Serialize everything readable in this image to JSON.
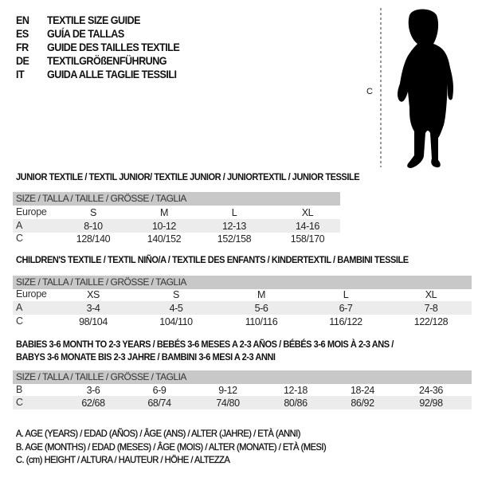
{
  "header": [
    {
      "code": "EN",
      "title": "TEXTILE SIZE GUIDE"
    },
    {
      "code": "ES",
      "title": "GUÍA DE TALLAS"
    },
    {
      "code": "FR",
      "title": "GUIDE DES TAILLES TEXTILE"
    },
    {
      "code": "DE",
      "title": "TEXTILGRÖßENFÜHRUNG"
    },
    {
      "code": "IT",
      "title": "GUIDA ALLE TAGLIE TESSILI"
    }
  ],
  "figure": {
    "label": "C",
    "icon": "child-silhouette"
  },
  "size_header": "SIZE / TALLA / TAILLE / GRÖSSE / TAGLIA",
  "junior": {
    "title": "JUNIOR TEXTILE / TEXTIL JUNIOR/ TEXTILE JUNIOR / JUNIORTEXTIL / JUNIOR TESSILE",
    "rows": [
      {
        "label": "Europe",
        "values": [
          "S",
          "M",
          "L",
          "XL"
        ]
      },
      {
        "label": "A",
        "values": [
          "8-10",
          "10-12",
          "12-13",
          "14-16"
        ]
      },
      {
        "label": "C",
        "values": [
          "128/140",
          "140/152",
          "152/158",
          "158/170"
        ]
      }
    ]
  },
  "children": {
    "title": "CHILDREN'S TEXTILE / TEXTIL NIÑO/A / TEXTILE DES ENFANTS / KINDERTEXTIL / BAMBINI TESSILE",
    "rows": [
      {
        "label": "Europe",
        "values": [
          "XS",
          "S",
          "M",
          "L",
          "XL"
        ]
      },
      {
        "label": "A",
        "values": [
          "3-4",
          "4-5",
          "5-6",
          "6-7",
          "7-8"
        ]
      },
      {
        "label": "C",
        "values": [
          "98/104",
          "104/110",
          "110/116",
          "116/122",
          "122/128"
        ]
      }
    ]
  },
  "babies": {
    "title_line1": "BABIES 3-6 MONTH TO 2-3 YEARS / BEBÉS 3-6 MESES A 2-3 AÑOS / BÉBÉS 3-6 MOIS À 2-3 ANS /",
    "title_line2": "BABYS 3-6 MONATE BIS 2-3 JAHRE / BAMBINI 3-6 MESI A 2-3 ANNI",
    "rows": [
      {
        "label": "B",
        "values": [
          "3-6",
          "6-9",
          "9-12",
          "12-18",
          "18-24",
          "24-36"
        ]
      },
      {
        "label": "C",
        "values": [
          "62/68",
          "68/74",
          "74/80",
          "80/86",
          "86/92",
          "92/98"
        ]
      }
    ]
  },
  "legend": [
    "A. AGE (YEARS) / EDAD (AÑOS) / ÂGE (ANS) / ALTER (JAHRE) / ETÀ (ANNI)",
    "B. AGE (MONTHS) / EDAD (MESES) / ÂGE (MOIS) / ALTER (MONATE) / ETÀ (MESI)",
    "C. (cm) HEIGHT / ALTURA / HAUTEUR / HÖHE / ALTEZZA"
  ],
  "colors": {
    "header_bar": "#c8c8c8",
    "row_shade": "#ececec",
    "text": "#111111"
  }
}
